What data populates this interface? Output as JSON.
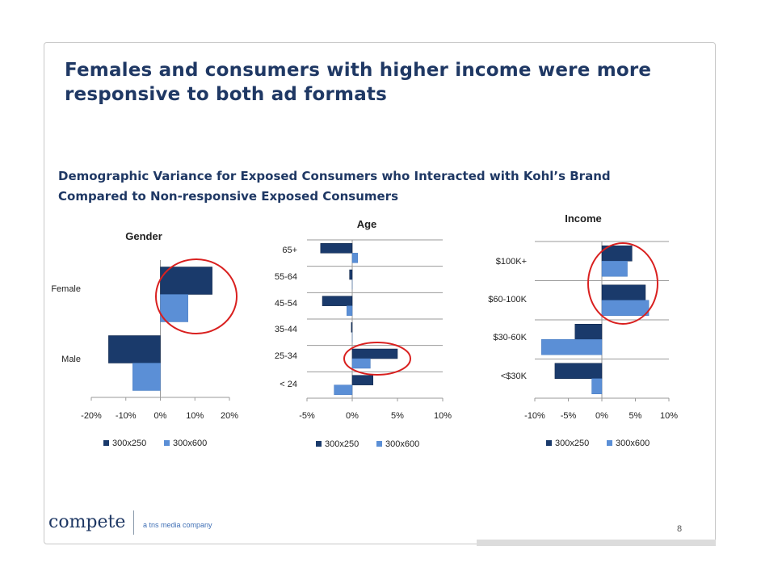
{
  "slide": {
    "title": "Females and consumers with higher income were more responsive to both ad formats",
    "subtitle_line1": "Demographic Variance for Exposed Consumers who Interacted with Kohl’s Brand",
    "subtitle_line2": "Compared to Non-responsive Exposed Consumers",
    "page_number": "8"
  },
  "footer": {
    "logo_text": "compete",
    "tagline": "a tns media company"
  },
  "colors": {
    "series_dark": "#1a3a6b",
    "series_light": "#5b8fd6",
    "highlight_circle": "#d9201f",
    "title": "#1f3864"
  },
  "chart_data": [
    {
      "type": "bar",
      "orientation": "horizontal",
      "title": "Gender",
      "categories": [
        "Female",
        "Male"
      ],
      "series": [
        {
          "name": "300x250",
          "values": [
            15,
            -15
          ]
        },
        {
          "name": "300x600",
          "values": [
            8,
            -8
          ]
        }
      ],
      "xlim": [
        -20,
        20
      ],
      "xticks": [
        "-20%",
        "-10%",
        "0%",
        "10%",
        "20%"
      ],
      "grid": false,
      "legend": "bottom",
      "highlight": "Female"
    },
    {
      "type": "bar",
      "orientation": "horizontal",
      "title": "Age",
      "categories": [
        "65+",
        "55-64",
        "45-54",
        "35-44",
        "25-34",
        "< 24"
      ],
      "series": [
        {
          "name": "300x250",
          "values": [
            -3.5,
            -0.3,
            -3.3,
            -0.1,
            5.0,
            2.3
          ]
        },
        {
          "name": "300x600",
          "values": [
            0.6,
            0.0,
            -0.6,
            0.0,
            2.0,
            -2.0
          ]
        }
      ],
      "xlim": [
        -5,
        10
      ],
      "xticks": [
        "-5%",
        "0%",
        "5%",
        "10%"
      ],
      "grid": true,
      "legend": "bottom",
      "highlight": "25-34"
    },
    {
      "type": "bar",
      "orientation": "horizontal",
      "title": "Income",
      "categories": [
        "$100K+",
        "$60-100K",
        "$30-60K",
        "<$30K"
      ],
      "series": [
        {
          "name": "300x250",
          "values": [
            4.5,
            6.5,
            -4.0,
            -7.0
          ]
        },
        {
          "name": "300x600",
          "values": [
            3.8,
            7.0,
            -9.0,
            -1.5
          ]
        }
      ],
      "xlim": [
        -10,
        10
      ],
      "xticks": [
        "-10%",
        "-5%",
        "0%",
        "5%",
        "10%"
      ],
      "grid": true,
      "legend": "bottom",
      "highlight": "$100K+ and $60-100K"
    }
  ]
}
